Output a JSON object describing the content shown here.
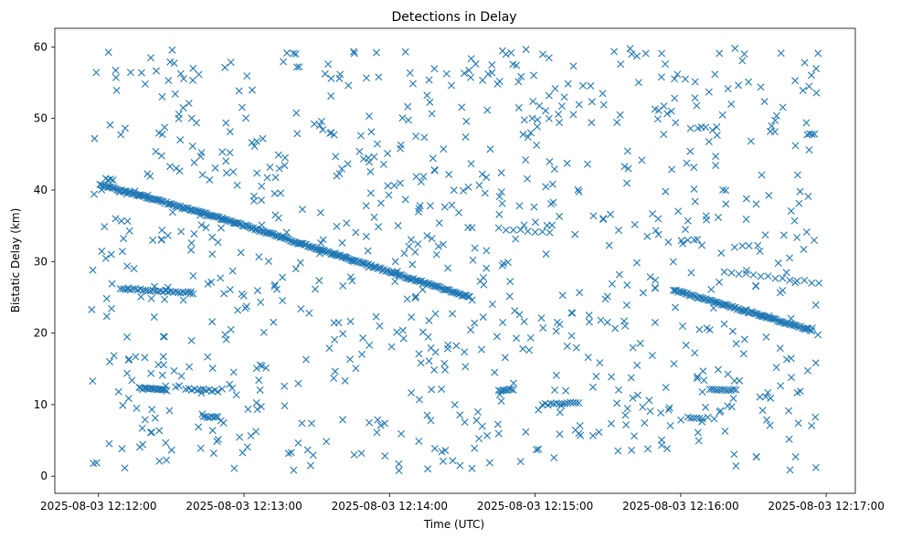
{
  "chart_data": {
    "type": "scatter",
    "title": "Detections in Delay",
    "xlabel": "Time (UTC)",
    "ylabel": "Bistatic Delay (km)",
    "x_unit": "minutes after 2025-08-03 12:12:00",
    "xlim": [
      -0.3,
      5.2
    ],
    "ylim": [
      -2.4,
      62.6
    ],
    "x_ticks": [
      {
        "value": 0,
        "label": "2025-08-03 12:12:00"
      },
      {
        "value": 1,
        "label": "2025-08-03 12:13:00"
      },
      {
        "value": 2,
        "label": "2025-08-03 12:14:00"
      },
      {
        "value": 3,
        "label": "2025-08-03 12:15:00"
      },
      {
        "value": 4,
        "label": "2025-08-03 12:16:00"
      },
      {
        "value": 5,
        "label": "2025-08-03 12:17:00"
      }
    ],
    "y_ticks": [
      0,
      10,
      20,
      30,
      40,
      50,
      60
    ],
    "marker": "x",
    "color": "#1f77b4",
    "tracks": [
      {
        "x0": 0.01,
        "x1": 0.85,
        "y0": 40.8,
        "y1": 36.0,
        "n": 80
      },
      {
        "x0": 0.85,
        "x1": 2.55,
        "y0": 36.0,
        "y1": 25.0,
        "n": 160
      },
      {
        "x0": 3.95,
        "x1": 4.9,
        "y0": 26.0,
        "y1": 20.4,
        "n": 90
      },
      {
        "x0": 0.15,
        "x1": 0.65,
        "y0": 26.2,
        "y1": 25.6,
        "n": 30
      },
      {
        "x0": 0.28,
        "x1": 0.47,
        "y0": 12.3,
        "y1": 12.0,
        "n": 18
      },
      {
        "x0": 0.6,
        "x1": 0.82,
        "y0": 12.2,
        "y1": 11.9,
        "n": 12
      },
      {
        "x0": 0.72,
        "x1": 0.82,
        "y0": 8.3,
        "y1": 8.2,
        "n": 8
      },
      {
        "x0": 3.05,
        "x1": 3.3,
        "y0": 10.0,
        "y1": 10.3,
        "n": 14
      },
      {
        "x0": 2.75,
        "x1": 2.85,
        "y0": 12.0,
        "y1": 12.1,
        "n": 8
      },
      {
        "x0": 4.2,
        "x1": 4.38,
        "y0": 12.1,
        "y1": 12.0,
        "n": 12
      },
      {
        "x0": 4.05,
        "x1": 4.15,
        "y0": 8.2,
        "y1": 8.1,
        "n": 6
      },
      {
        "x0": 4.3,
        "x1": 4.95,
        "y0": 28.6,
        "y1": 27.0,
        "n": 14
      },
      {
        "x0": 2.75,
        "x1": 3.1,
        "y0": 34.6,
        "y1": 34.0,
        "n": 8
      },
      {
        "x0": 4.87,
        "x1": 4.92,
        "y0": 47.8,
        "y1": 47.8,
        "n": 4
      },
      {
        "x0": 0.05,
        "x1": 0.1,
        "y0": 41.5,
        "y1": 41.4,
        "n": 4
      }
    ],
    "scatter_points": {
      "count": 900,
      "x_range": [
        -0.05,
        4.95
      ],
      "y_range": [
        0.5,
        59.8
      ]
    }
  }
}
